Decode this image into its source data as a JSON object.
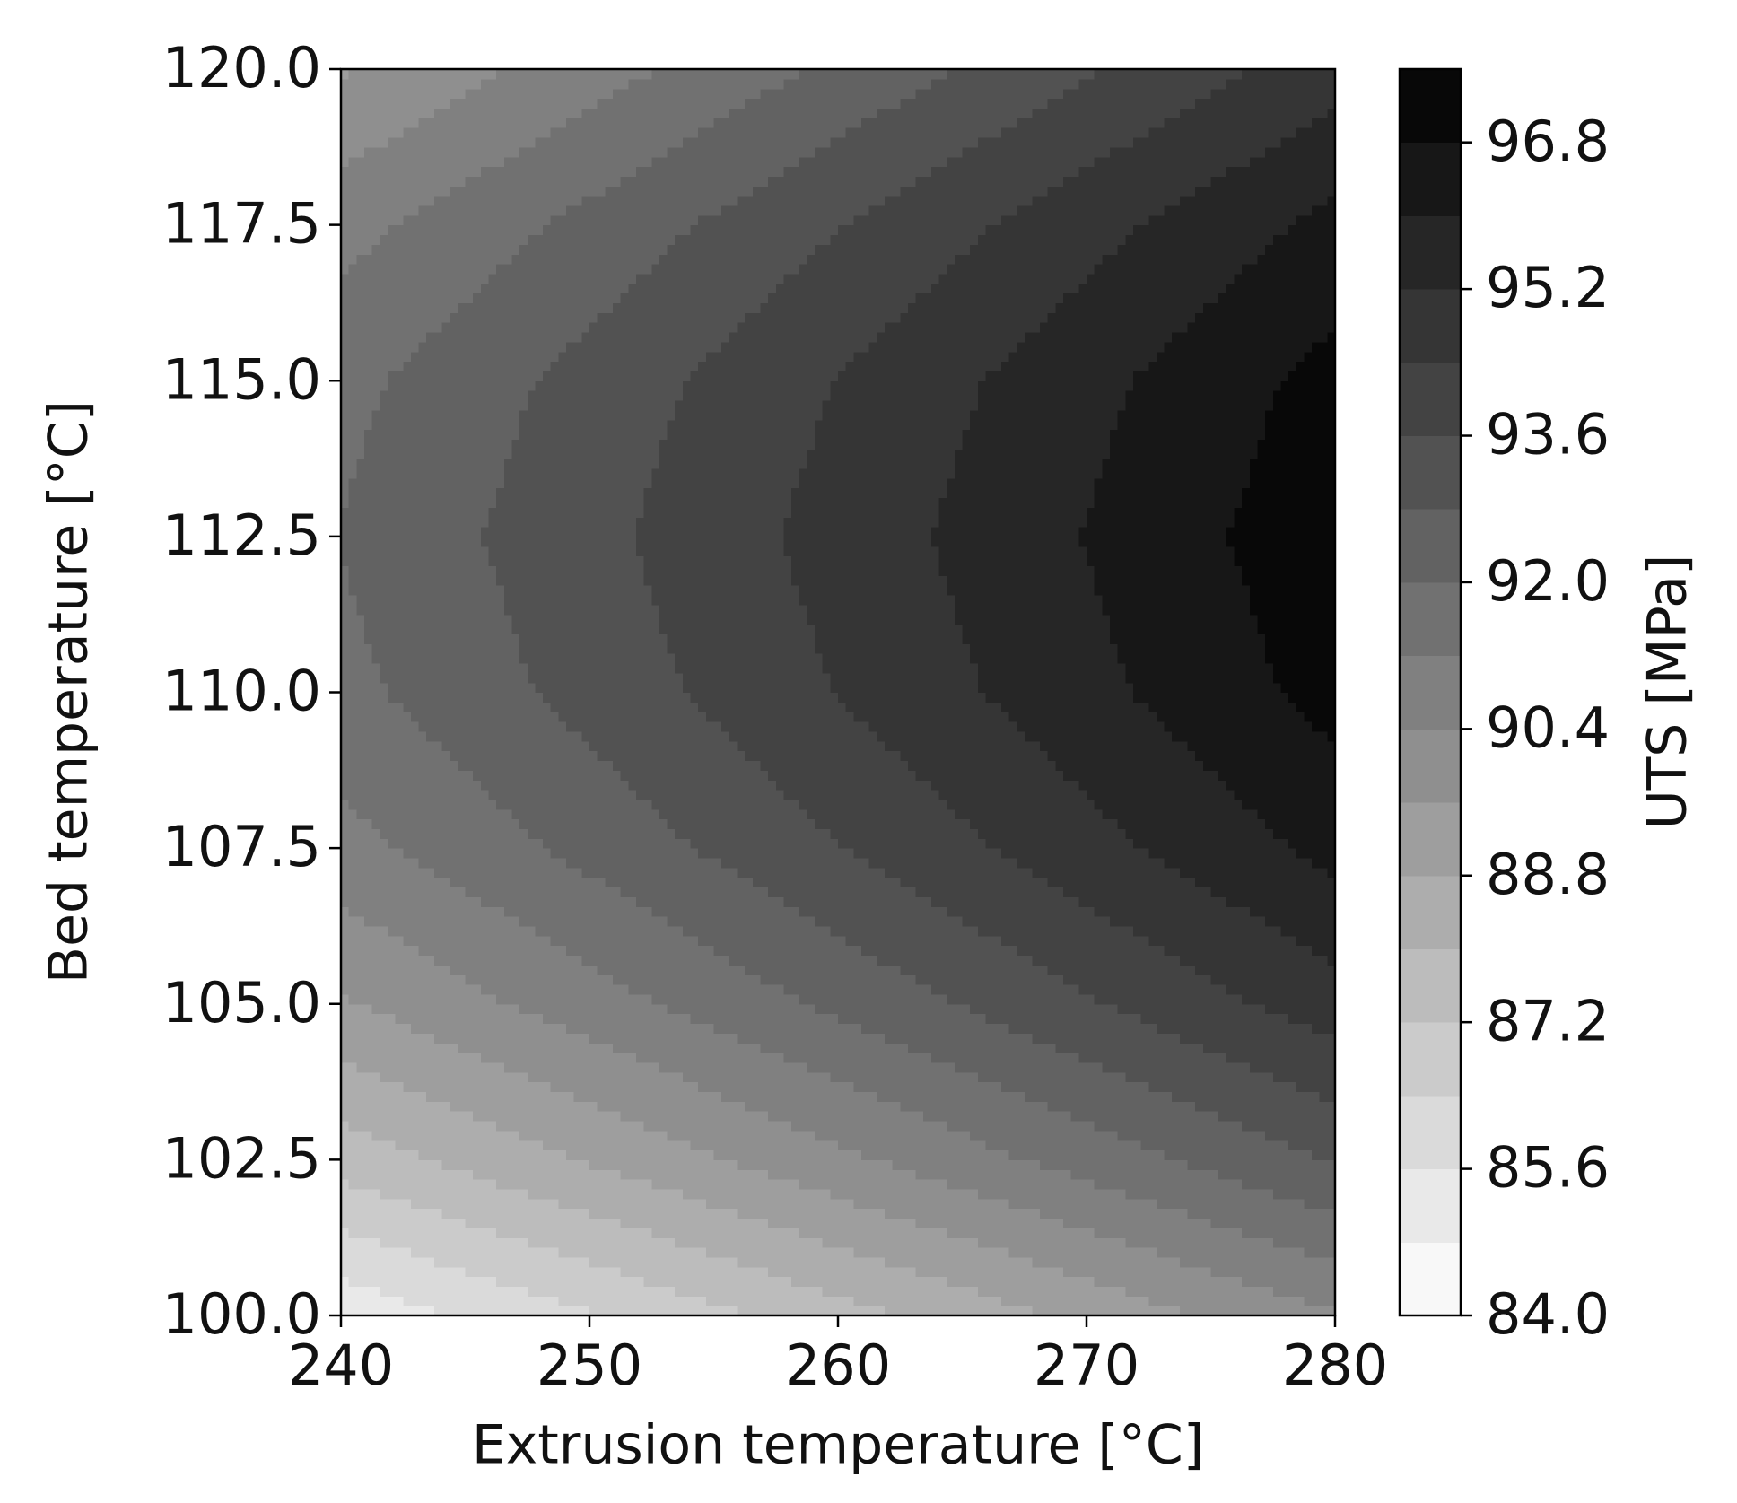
{
  "chart_data": {
    "type": "contourf",
    "x_label": "Extrusion temperature [°C]",
    "y_label": "Bed temperature [°C]",
    "colorbar_label": "UTS [MPa]",
    "cmap": "gray_r",
    "x": [
      240,
      245,
      250,
      255,
      260,
      265,
      270,
      275,
      280
    ],
    "y": [
      100,
      102.5,
      105,
      107.5,
      110,
      112.5,
      115,
      117.5,
      120
    ],
    "z": [
      [
        85.01,
        85.68,
        86.34,
        87.01,
        87.68,
        88.34,
        89.01,
        89.68,
        90.34
      ],
      [
        87.54,
        88.21,
        88.87,
        89.54,
        90.21,
        90.87,
        91.54,
        92.21,
        92.87
      ],
      [
        89.51,
        90.18,
        90.84,
        91.51,
        92.18,
        92.84,
        93.51,
        94.18,
        94.84
      ],
      [
        90.91,
        91.58,
        92.24,
        92.91,
        93.58,
        94.24,
        94.91,
        95.58,
        96.24
      ],
      [
        91.76,
        92.43,
        93.09,
        93.76,
        94.43,
        95.09,
        95.76,
        96.43,
        97.09
      ],
      [
        92.04,
        92.71,
        93.37,
        94.04,
        94.71,
        95.37,
        96.04,
        96.71,
        97.37
      ],
      [
        91.76,
        92.43,
        93.09,
        93.76,
        94.43,
        95.09,
        95.76,
        96.43,
        97.09
      ],
      [
        90.91,
        91.58,
        92.24,
        92.91,
        93.58,
        94.24,
        94.91,
        95.58,
        96.24
      ],
      [
        89.51,
        90.18,
        90.84,
        91.51,
        92.18,
        92.84,
        93.51,
        94.18,
        94.84
      ]
    ],
    "levels": [
      84.0,
      84.8,
      85.6,
      86.4,
      87.2,
      88.0,
      88.8,
      89.6,
      90.4,
      91.2,
      92.0,
      92.8,
      93.6,
      94.4,
      95.2,
      96.0,
      96.8,
      97.6
    ],
    "xlim": [
      240,
      280
    ],
    "xticks": [
      240,
      250,
      260,
      270,
      280
    ],
    "ylim": [
      100,
      120
    ],
    "yticks": [
      {
        "value": 100,
        "label": "100.0"
      },
      {
        "value": 102.5,
        "label": "102.5"
      },
      {
        "value": 105,
        "label": "105.0"
      },
      {
        "value": 107.5,
        "label": "107.5"
      },
      {
        "value": 110,
        "label": "110.0"
      },
      {
        "value": 112.5,
        "label": "112.5"
      },
      {
        "value": 115,
        "label": "115.0"
      },
      {
        "value": 117.5,
        "label": "117.5"
      },
      {
        "value": 120,
        "label": "120.0"
      }
    ],
    "colorbar_ticks": [
      {
        "value": 84,
        "label": "84.0"
      },
      {
        "value": 85.6,
        "label": "85.6"
      },
      {
        "value": 87.2,
        "label": "87.2"
      },
      {
        "value": 88.8,
        "label": "88.8"
      },
      {
        "value": 90.4,
        "label": "90.4"
      },
      {
        "value": 92,
        "label": "92.0"
      },
      {
        "value": 93.6,
        "label": "93.6"
      },
      {
        "value": 95.2,
        "label": "95.2"
      },
      {
        "value": 96.8,
        "label": "96.8"
      }
    ]
  }
}
